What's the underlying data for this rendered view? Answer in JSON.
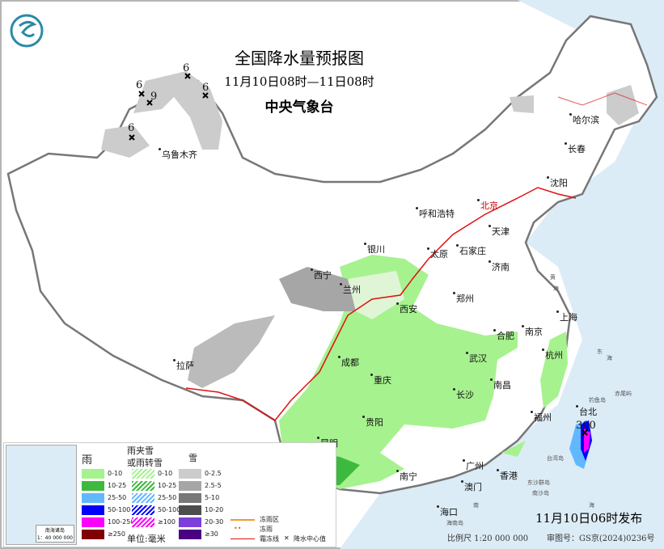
{
  "header": {
    "title": "全国降水量预报图",
    "period": "11月10日08时—11日08时",
    "issuer": "中央气象台",
    "logo": "cma-dragon-logo"
  },
  "cities": [
    {
      "name": "乌鲁木齐"
    },
    {
      "name": "哈尔滨"
    },
    {
      "name": "长春"
    },
    {
      "name": "沈阳"
    },
    {
      "name": "北京"
    },
    {
      "name": "呼和浩特"
    },
    {
      "name": "天津"
    },
    {
      "name": "石家庄"
    },
    {
      "name": "太原"
    },
    {
      "name": "银川"
    },
    {
      "name": "济南"
    },
    {
      "name": "西宁"
    },
    {
      "name": "兰州"
    },
    {
      "name": "郑州"
    },
    {
      "name": "西安"
    },
    {
      "name": "合肥"
    },
    {
      "name": "南京"
    },
    {
      "name": "上海"
    },
    {
      "name": "杭州"
    },
    {
      "name": "武汉"
    },
    {
      "name": "成都"
    },
    {
      "name": "重庆"
    },
    {
      "name": "南昌"
    },
    {
      "name": "长沙"
    },
    {
      "name": "拉萨"
    },
    {
      "name": "福州"
    },
    {
      "name": "台北"
    },
    {
      "name": "贵阳"
    },
    {
      "name": "昆明"
    },
    {
      "name": "南宁"
    },
    {
      "name": "广州"
    },
    {
      "name": "香港"
    },
    {
      "name": "澳门"
    },
    {
      "name": "海口"
    }
  ],
  "geo_labels": [
    "黄",
    "海",
    "东",
    "海",
    "台湾岛",
    "钓鱼岛",
    "赤尾屿",
    "东沙群岛",
    "南沙岛",
    "海南岛",
    "南",
    "海"
  ],
  "precip_centers": [
    "6",
    "6",
    "9",
    "6",
    "6",
    "30",
    "300"
  ],
  "legend": {
    "rain": {
      "title": "雨",
      "items": [
        {
          "label": "0-10",
          "color": "#a6f28f"
        },
        {
          "label": "10-25",
          "color": "#3dba3d"
        },
        {
          "label": "25-50",
          "color": "#61b8ff"
        },
        {
          "label": "50-100",
          "color": "#0000ff"
        },
        {
          "label": "100-250",
          "color": "#fa00fa"
        },
        {
          "label": "≥250",
          "color": "#800000"
        }
      ]
    },
    "sleet": {
      "title1": "雨夹雪",
      "title2": "或雨转雪",
      "items": [
        {
          "label": "0-10",
          "color": "#a6f28f"
        },
        {
          "label": "10-25",
          "color": "#3dba3d"
        },
        {
          "label": "25-50",
          "color": "#61b8ff"
        },
        {
          "label": "50-100",
          "color": "#0000ff"
        },
        {
          "label": "≥100",
          "color": "#fa00fa"
        }
      ]
    },
    "snow": {
      "title": "雪",
      "items": [
        {
          "label": "0-2.5",
          "color": "#cccccc"
        },
        {
          "label": "2.5-5",
          "color": "#a6a6a6"
        },
        {
          "label": "5-10",
          "color": "#787878"
        },
        {
          "label": "10-20",
          "color": "#4d4d4d"
        },
        {
          "label": "20-30",
          "color": "#7b3fdb"
        },
        {
          "label": "≥30",
          "color": "#4b0082"
        }
      ]
    },
    "unit": "单位:毫米",
    "freezing_rain_area": "冻雨区",
    "freezing_rain": "冻雨",
    "frost_line": "霜冻线",
    "precip_center": "降水中心值",
    "inset_title": "南海诸岛",
    "inset_scale": "1：40 000 000"
  },
  "footer": {
    "issued": "11月10日06时发布",
    "scale": "比例尺 1:20 000 000",
    "map_no": "审图号：GS京(2024)0236号"
  }
}
